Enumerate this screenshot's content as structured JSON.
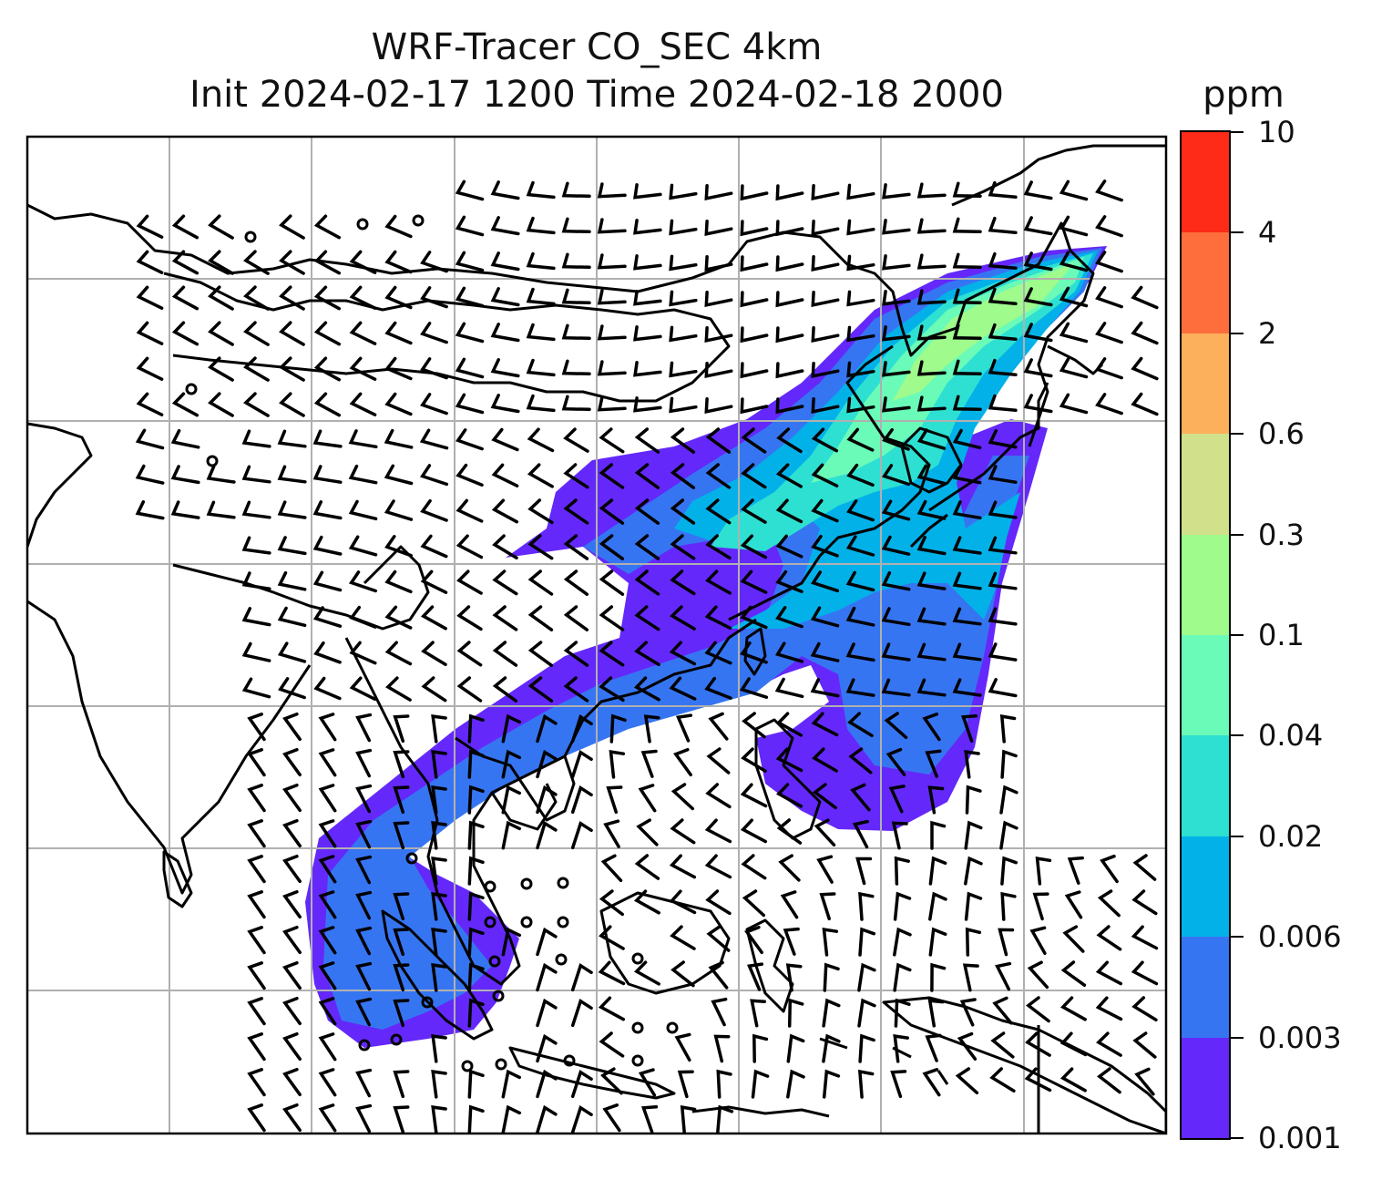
{
  "title": {
    "line1": "WRF-Tracer CO_SEC 4km",
    "line2": "Init 2024-02-17 1200 Time 2024-02-18 2000"
  },
  "colorbar": {
    "unit": "ppm",
    "levels": [
      "0.001",
      "0.003",
      "0.006",
      "0.02",
      "0.04",
      "0.1",
      "0.3",
      "0.6",
      "2",
      "4",
      "10"
    ],
    "colors": [
      "#6428fa",
      "#3675f2",
      "#03b1e9",
      "#2ee0d2",
      "#6bfbb8",
      "#9efb8c",
      "#d1e08a",
      "#fdb05c",
      "#fe6e3c",
      "#fd2b17"
    ]
  },
  "map": {
    "layers": [
      "coastlines",
      "country-borders",
      "lat-lon-gridlines",
      "co-tracer-shading",
      "wind-barbs"
    ],
    "grid": true
  }
}
